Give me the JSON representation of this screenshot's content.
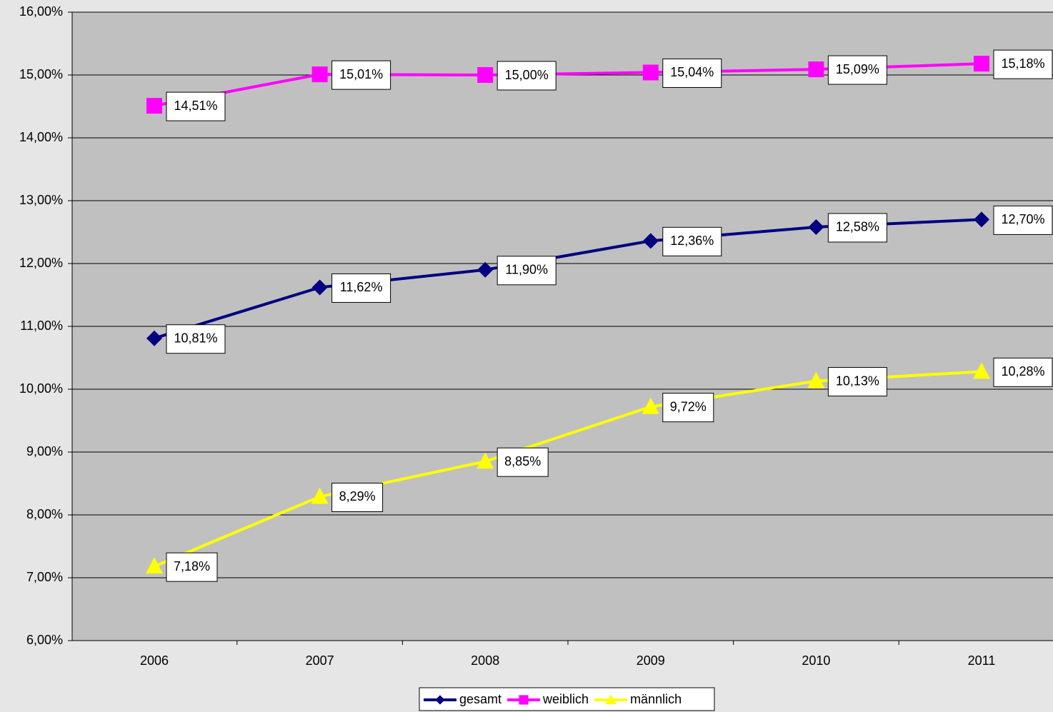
{
  "chart_data": {
    "type": "line",
    "categories": [
      "2006",
      "2007",
      "2008",
      "2009",
      "2010",
      "2011"
    ],
    "series": [
      {
        "name": "gesamt",
        "color": "#000080",
        "marker": "diamond",
        "values": [
          10.81,
          11.62,
          11.9,
          12.36,
          12.58,
          12.7
        ],
        "value_labels": [
          "10,81%",
          "11,62%",
          "11,90%",
          "12,36%",
          "12,58%",
          "12,70%"
        ]
      },
      {
        "name": "weiblich",
        "color": "#ff00ff",
        "marker": "square",
        "values": [
          14.51,
          15.01,
          15.0,
          15.04,
          15.09,
          15.18
        ],
        "value_labels": [
          "14,51%",
          "15,01%",
          "15,00%",
          "15,04%",
          "15,09%",
          "15,18%"
        ]
      },
      {
        "name": "männlich",
        "color": "#ffff00",
        "marker": "triangle",
        "values": [
          7.18,
          8.29,
          8.85,
          9.72,
          10.13,
          10.28
        ],
        "value_labels": [
          "7,18%",
          "8,29%",
          "8,85%",
          "9,72%",
          "10,13%",
          "10,28%"
        ]
      }
    ],
    "ylim": [
      6,
      16
    ],
    "yticks": [
      {
        "value": 6,
        "label": "6,00%"
      },
      {
        "value": 7,
        "label": "7,00%"
      },
      {
        "value": 8,
        "label": "8,00%"
      },
      {
        "value": 9,
        "label": "9,00%"
      },
      {
        "value": 10,
        "label": "10,00%"
      },
      {
        "value": 11,
        "label": "11,00%"
      },
      {
        "value": 12,
        "label": "12,00%"
      },
      {
        "value": 13,
        "label": "13,00%"
      },
      {
        "value": 14,
        "label": "14,00%"
      },
      {
        "value": 15,
        "label": "15,00%"
      },
      {
        "value": 16,
        "label": "16,00%"
      }
    ],
    "grid": true,
    "legend": "bottom"
  }
}
